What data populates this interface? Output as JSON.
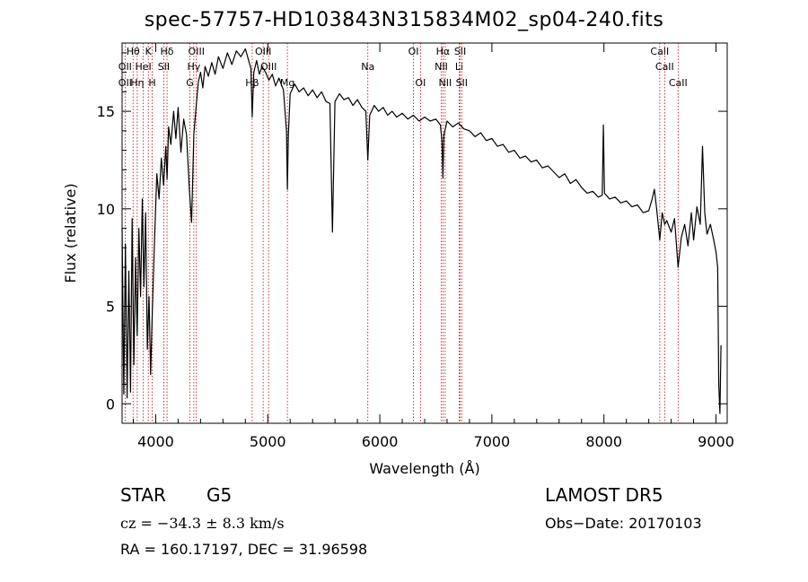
{
  "title": "spec-57757-HD103843N315834M02_sp04-240.fits",
  "info": {
    "class_label": "STAR",
    "subclass": "G5",
    "survey": "LAMOST DR5",
    "redshift": "cz = −34.3 ± 8.3 km/s",
    "obs_date": "Obs−Date: 20170103",
    "coords": "RA = 160.17197, DEC =  31.96598"
  },
  "chart_data": {
    "type": "line",
    "xlabel": "Wavelength (Å)",
    "ylabel": "Flux (relative)",
    "xlim": [
      3700,
      9100
    ],
    "ylim": [
      -1,
      18.5
    ],
    "xticks": [
      4000,
      5000,
      6000,
      7000,
      8000,
      9000
    ],
    "yticks": [
      0,
      5,
      10,
      15
    ],
    "grid": false,
    "colors": {
      "spectrum": "#000000",
      "lines": "#c00000"
    },
    "series": [
      {
        "values": [
          [
            3700,
            9.0
          ],
          [
            3715,
            0.5
          ],
          [
            3730,
            8.2
          ],
          [
            3745,
            0.3
          ],
          [
            3760,
            6.8
          ],
          [
            3775,
            0.6
          ],
          [
            3790,
            9.5
          ],
          [
            3805,
            2.0
          ],
          [
            3820,
            7.5
          ],
          [
            3835,
            3.5
          ],
          [
            3850,
            9.0
          ],
          [
            3865,
            5.5
          ],
          [
            3880,
            10.5
          ],
          [
            3895,
            6.0
          ],
          [
            3910,
            9.8
          ],
          [
            3925,
            2.8
          ],
          [
            3940,
            5.5
          ],
          [
            3955,
            1.5
          ],
          [
            3970,
            4.8
          ],
          [
            3990,
            8.5
          ],
          [
            4010,
            11.8
          ],
          [
            4030,
            10.5
          ],
          [
            4050,
            12.6
          ],
          [
            4070,
            11.2
          ],
          [
            4090,
            13.2
          ],
          [
            4101,
            11.5
          ],
          [
            4115,
            14.2
          ],
          [
            4135,
            13.3
          ],
          [
            4160,
            15.0
          ],
          [
            4180,
            13.6
          ],
          [
            4200,
            15.2
          ],
          [
            4225,
            12.9
          ],
          [
            4250,
            14.6
          ],
          [
            4275,
            13.8
          ],
          [
            4300,
            11.0
          ],
          [
            4320,
            9.3
          ],
          [
            4340,
            13.8
          ],
          [
            4360,
            15.2
          ],
          [
            4380,
            16.5
          ],
          [
            4400,
            17.0
          ],
          [
            4420,
            16.2
          ],
          [
            4440,
            17.3
          ],
          [
            4470,
            16.8
          ],
          [
            4500,
            17.5
          ],
          [
            4530,
            16.9
          ],
          [
            4560,
            17.8
          ],
          [
            4600,
            17.2
          ],
          [
            4640,
            18.0
          ],
          [
            4680,
            17.4
          ],
          [
            4720,
            18.1
          ],
          [
            4760,
            17.8
          ],
          [
            4800,
            18.2
          ],
          [
            4830,
            17.6
          ],
          [
            4850,
            17.2
          ],
          [
            4861,
            14.7
          ],
          [
            4875,
            17.0
          ],
          [
            4900,
            17.6
          ],
          [
            4925,
            16.9
          ],
          [
            4950,
            17.3
          ],
          [
            4980,
            17.0
          ],
          [
            5010,
            16.6
          ],
          [
            5040,
            16.9
          ],
          [
            5070,
            16.3
          ],
          [
            5100,
            16.7
          ],
          [
            5140,
            16.1
          ],
          [
            5167,
            14.0
          ],
          [
            5175,
            11.0
          ],
          [
            5184,
            13.8
          ],
          [
            5200,
            15.9
          ],
          [
            5240,
            16.4
          ],
          [
            5280,
            16.0
          ],
          [
            5320,
            16.2
          ],
          [
            5360,
            15.8
          ],
          [
            5400,
            16.1
          ],
          [
            5440,
            15.7
          ],
          [
            5480,
            16.0
          ],
          [
            5520,
            15.5
          ],
          [
            5555,
            15.4
          ],
          [
            5577,
            8.8
          ],
          [
            5600,
            15.5
          ],
          [
            5640,
            15.9
          ],
          [
            5680,
            15.6
          ],
          [
            5720,
            15.7
          ],
          [
            5760,
            15.3
          ],
          [
            5800,
            15.6
          ],
          [
            5840,
            15.2
          ],
          [
            5875,
            15.0
          ],
          [
            5893,
            12.5
          ],
          [
            5910,
            14.8
          ],
          [
            5950,
            15.3
          ],
          [
            5990,
            15.0
          ],
          [
            6030,
            15.2
          ],
          [
            6070,
            14.8
          ],
          [
            6110,
            15.0
          ],
          [
            6150,
            14.7
          ],
          [
            6200,
            14.9
          ],
          [
            6250,
            14.6
          ],
          [
            6300,
            14.8
          ],
          [
            6350,
            14.5
          ],
          [
            6400,
            14.7
          ],
          [
            6450,
            14.5
          ],
          [
            6500,
            14.6
          ],
          [
            6540,
            14.3
          ],
          [
            6555,
            13.5
          ],
          [
            6563,
            11.6
          ],
          [
            6572,
            13.8
          ],
          [
            6600,
            14.5
          ],
          [
            6650,
            14.2
          ],
          [
            6700,
            14.4
          ],
          [
            6750,
            14.1
          ],
          [
            6800,
            14.0
          ],
          [
            6850,
            13.7
          ],
          [
            6900,
            13.9
          ],
          [
            6950,
            13.5
          ],
          [
            7000,
            13.6
          ],
          [
            7050,
            13.2
          ],
          [
            7100,
            13.3
          ],
          [
            7150,
            12.9
          ],
          [
            7200,
            13.0
          ],
          [
            7250,
            12.6
          ],
          [
            7300,
            12.7
          ],
          [
            7350,
            12.4
          ],
          [
            7400,
            12.5
          ],
          [
            7450,
            12.1
          ],
          [
            7500,
            12.2
          ],
          [
            7550,
            11.9
          ],
          [
            7600,
            11.6
          ],
          [
            7650,
            11.8
          ],
          [
            7700,
            11.3
          ],
          [
            7750,
            11.5
          ],
          [
            7800,
            11.1
          ],
          [
            7850,
            10.8
          ],
          [
            7900,
            10.9
          ],
          [
            7950,
            10.6
          ],
          [
            7985,
            10.7
          ],
          [
            7995,
            14.3
          ],
          [
            8005,
            10.8
          ],
          [
            8050,
            10.5
          ],
          [
            8100,
            10.6
          ],
          [
            8150,
            10.3
          ],
          [
            8200,
            10.4
          ],
          [
            8250,
            10.1
          ],
          [
            8300,
            10.2
          ],
          [
            8350,
            9.8
          ],
          [
            8400,
            9.9
          ],
          [
            8430,
            10.5
          ],
          [
            8450,
            11.0
          ],
          [
            8470,
            10.0
          ],
          [
            8498,
            8.4
          ],
          [
            8520,
            9.8
          ],
          [
            8542,
            9.2
          ],
          [
            8560,
            9.4
          ],
          [
            8600,
            8.8
          ],
          [
            8630,
            9.5
          ],
          [
            8662,
            7.0
          ],
          [
            8690,
            8.5
          ],
          [
            8720,
            9.2
          ],
          [
            8750,
            8.1
          ],
          [
            8780,
            9.8
          ],
          [
            8800,
            8.4
          ],
          [
            8830,
            10.1
          ],
          [
            8860,
            9.2
          ],
          [
            8880,
            13.2
          ],
          [
            8900,
            9.8
          ],
          [
            8920,
            8.7
          ],
          [
            8950,
            9.2
          ],
          [
            8980,
            8.4
          ],
          [
            9000,
            7.8
          ],
          [
            9015,
            7.0
          ],
          [
            9025,
            1.0
          ],
          [
            9035,
            -0.5
          ],
          [
            9045,
            3.0
          ]
        ]
      }
    ],
    "line_marks": [
      {
        "label": "Hθ",
        "wavelength": 3798,
        "row": 0
      },
      {
        "label": "K",
        "wavelength": 3934,
        "row": 0
      },
      {
        "label": "Hδ",
        "wavelength": 4101,
        "row": 0
      },
      {
        "label": "OIII",
        "wavelength": 4363,
        "row": 0
      },
      {
        "label": "OIII",
        "wavelength": 4959,
        "row": 0
      },
      {
        "label": "OI",
        "wavelength": 6300,
        "row": 0
      },
      {
        "label": "Hα",
        "wavelength": 6563,
        "row": 0
      },
      {
        "label": "SII",
        "wavelength": 6717,
        "row": 0
      },
      {
        "label": "CaII",
        "wavelength": 8498,
        "row": 0
      },
      {
        "label": "OII",
        "wavelength": 3727,
        "row": 1
      },
      {
        "label": "HeI",
        "wavelength": 3889,
        "row": 1
      },
      {
        "label": "SII",
        "wavelength": 4072,
        "row": 1
      },
      {
        "label": "Hγ",
        "wavelength": 4340,
        "row": 1
      },
      {
        "label": "OIII",
        "wavelength": 5007,
        "row": 1
      },
      {
        "label": "Na",
        "wavelength": 5893,
        "row": 1
      },
      {
        "label": "NII",
        "wavelength": 6548,
        "row": 1
      },
      {
        "label": "Li",
        "wavelength": 6708,
        "row": 1
      },
      {
        "label": "CaII",
        "wavelength": 8542,
        "row": 1
      },
      {
        "label": "OII",
        "wavelength": 3727,
        "row": 2
      },
      {
        "label": "Hη",
        "wavelength": 3835,
        "row": 2
      },
      {
        "label": "H",
        "wavelength": 3969,
        "row": 2
      },
      {
        "label": "G",
        "wavelength": 4305,
        "row": 2
      },
      {
        "label": "Hβ",
        "wavelength": 4861,
        "row": 2
      },
      {
        "label": "Mg",
        "wavelength": 5175,
        "row": 2
      },
      {
        "label": "OI",
        "wavelength": 6363,
        "row": 2
      },
      {
        "label": "NII",
        "wavelength": 6583,
        "row": 2
      },
      {
        "label": "SII",
        "wavelength": 6731,
        "row": 2
      },
      {
        "label": "CaII",
        "wavelength": 8662,
        "row": 2
      }
    ]
  }
}
